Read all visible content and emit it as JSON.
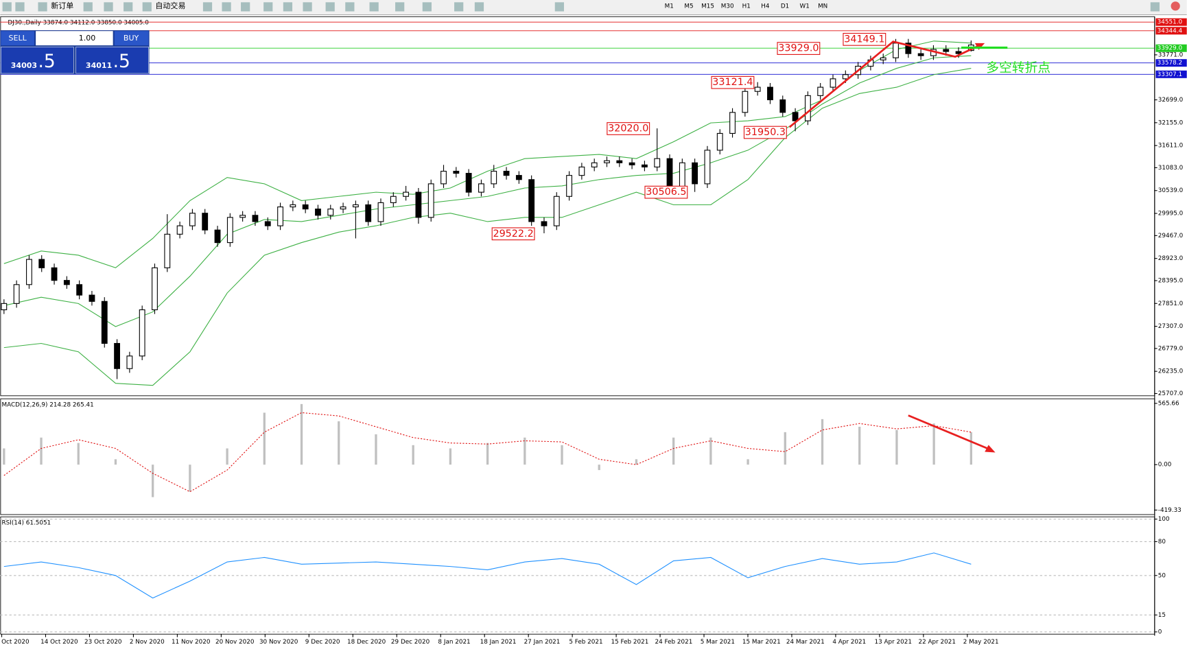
{
  "toolbar": {
    "new_order": "新订单",
    "auto_trading": "自动交易",
    "timeframes": [
      "M1",
      "M5",
      "M15",
      "M30",
      "H1",
      "H4",
      "D1",
      "W1",
      "MN"
    ]
  },
  "trade_panel": {
    "sell": "SELL",
    "buy": "BUY",
    "volume": "1.00",
    "sell_price_main": "34003",
    "sell_price_frac": ".5",
    "buy_price_main": "34011",
    "buy_price_frac": ".5"
  },
  "chart_data": [
    {
      "type": "candlestick",
      "title": "DJ30.,Daily 33874.0 34112.0 33850.0 34005.0",
      "date_labels": [
        "Oct 2020",
        "14 Oct 2020",
        "23 Oct 2020",
        "2 Nov 2020",
        "11 Nov 2020",
        "20 Nov 2020",
        "30 Nov 2020",
        "9 Dec 2020",
        "18 Dec 2020",
        "29 Dec 2020",
        "8 Jan 2021",
        "18 Jan 2021",
        "27 Jan 2021",
        "5 Feb 2021",
        "15 Feb 2021",
        "24 Feb 2021",
        "5 Mar 2021",
        "15 Mar 2021",
        "24 Mar 2021",
        "4 Apr 2021",
        "13 Apr 2021",
        "22 Apr 2021",
        "2 May 2021"
      ],
      "open": [
        27700,
        27850,
        28300,
        28900,
        28700,
        28400,
        28300,
        28050,
        27900,
        26900,
        26300,
        26600,
        27700,
        28700,
        29500,
        29700,
        30000,
        29600,
        29300,
        29900,
        29950,
        29800,
        29700,
        30150,
        30200,
        30100,
        29950,
        30100,
        30150,
        30200,
        29800,
        30250,
        30400,
        30500,
        29900,
        30700,
        31000,
        30950,
        30500,
        30700,
        31000,
        30900,
        30800,
        29800,
        29700,
        30400,
        30900,
        31100,
        31200,
        31250,
        31200,
        31150,
        31100,
        31300,
        30600,
        31200,
        30700,
        31500,
        31900,
        32400,
        32900,
        33000,
        32700,
        32400,
        32200,
        32800,
        33000,
        33200,
        33300,
        33500,
        33650,
        33700,
        34050,
        33800,
        33750,
        33900,
        33850,
        33874
      ],
      "high": [
        27950,
        28400,
        29000,
        29000,
        28800,
        28500,
        28400,
        28150,
        28000,
        27000,
        26700,
        27800,
        28800,
        29977,
        29800,
        30100,
        30100,
        29700,
        30000,
        30050,
        30050,
        29900,
        30250,
        30300,
        30300,
        30200,
        30200,
        30250,
        30300,
        30300,
        30350,
        30500,
        30650,
        30600,
        30800,
        31150,
        31100,
        31050,
        30800,
        31150,
        31100,
        31000,
        30900,
        29900,
        30500,
        31000,
        31200,
        31300,
        31350,
        31350,
        31300,
        31250,
        32020,
        31400,
        31300,
        31300,
        31600,
        32000,
        32500,
        33000,
        33121.4,
        33100,
        32800,
        32500,
        32900,
        33100,
        33300,
        33400,
        33600,
        33750,
        33800,
        34149.1,
        34150,
        33900,
        34000,
        34000,
        33950,
        34112
      ],
      "low": [
        27600,
        27750,
        28200,
        28600,
        28300,
        28200,
        27950,
        27800,
        26800,
        26050,
        26200,
        26500,
        27600,
        28600,
        29400,
        29600,
        29500,
        29200,
        29200,
        29800,
        29700,
        29600,
        29600,
        30050,
        30000,
        29850,
        29850,
        30000,
        29400,
        29700,
        29700,
        30150,
        30300,
        29750,
        29800,
        30600,
        30850,
        30400,
        30400,
        30600,
        30800,
        30700,
        29700,
        29522.2,
        29600,
        30300,
        30800,
        31000,
        31100,
        31100,
        31050,
        31000,
        31000,
        30500,
        30500,
        30506.5,
        30600,
        31400,
        31800,
        32300,
        32800,
        32600,
        32300,
        31950.3,
        32100,
        32700,
        32900,
        33100,
        33200,
        33400,
        33550,
        33600,
        33700,
        33650,
        33650,
        33750,
        33700,
        33850
      ],
      "close": [
        27850,
        28300,
        28900,
        28700,
        28400,
        28300,
        28050,
        27900,
        26900,
        26300,
        26600,
        27700,
        28700,
        29500,
        29700,
        30000,
        29600,
        29300,
        29900,
        29950,
        29800,
        29700,
        30150,
        30200,
        30100,
        29950,
        30100,
        30150,
        30200,
        29800,
        30250,
        30400,
        30500,
        29900,
        30700,
        31000,
        30950,
        30500,
        30700,
        31000,
        30900,
        30800,
        29800,
        29700,
        30400,
        30900,
        31100,
        31200,
        31250,
        31200,
        31150,
        31100,
        31300,
        30600,
        31200,
        30700,
        31500,
        31900,
        32400,
        32900,
        33000,
        32700,
        32400,
        32200,
        32800,
        33000,
        33200,
        33300,
        33500,
        33650,
        33700,
        34050,
        33800,
        33750,
        33900,
        33850,
        33800,
        34005
      ],
      "overlays": [
        {
          "color": "#3cb043",
          "values": [
            28800,
            29100,
            29000,
            28700,
            29400,
            30300,
            30850,
            30700,
            30300,
            30400,
            30500,
            30450,
            30600,
            31000,
            31300,
            31350,
            31400,
            31300,
            31700,
            32150,
            32200,
            32300,
            32700,
            33400,
            33900,
            34100,
            34050
          ]
        },
        {
          "color": "#3cb043",
          "values": [
            27800,
            28000,
            27850,
            27300,
            27650,
            28500,
            29500,
            29850,
            29800,
            29950,
            30100,
            30200,
            30300,
            30400,
            30600,
            30650,
            30800,
            30900,
            30950,
            31200,
            31500,
            32000,
            32600,
            33100,
            33450,
            33700,
            33750
          ]
        },
        {
          "color": "#3cb043",
          "values": [
            26800,
            26900,
            26700,
            25950,
            25900,
            26700,
            28100,
            29000,
            29300,
            29550,
            29700,
            29900,
            30000,
            29800,
            29900,
            29900,
            30200,
            30500,
            30200,
            30200,
            30800,
            31800,
            32500,
            32850,
            33000,
            33300,
            33450
          ]
        }
      ],
      "ylim": [
        25653,
        34680
      ],
      "yticks": [
        {
          "value": 33771,
          "label": "33771.0"
        },
        {
          "value": 32699,
          "label": "32699.0"
        },
        {
          "value": 32155,
          "label": "32155.0"
        },
        {
          "value": 31611,
          "label": "31611.0"
        },
        {
          "value": 31083,
          "label": "31083.0"
        },
        {
          "value": 30539,
          "label": "30539.0"
        },
        {
          "value": 29995,
          "label": "29995.0"
        },
        {
          "value": 29467,
          "label": "29467.0"
        },
        {
          "value": 28923,
          "label": "28923.0"
        },
        {
          "value": 28395,
          "label": "28395.0"
        },
        {
          "value": 27851,
          "label": "27851.0"
        },
        {
          "value": 27307,
          "label": "27307.0"
        },
        {
          "value": 26779,
          "label": "26779.0"
        },
        {
          "value": 26235,
          "label": "26235.0"
        },
        {
          "value": 25707,
          "label": "25707.0"
        }
      ],
      "levels": [
        {
          "value": 34551,
          "label": "34551.0",
          "color": "#e01010"
        },
        {
          "value": 34344.4,
          "label": "34344.4",
          "color": "#e01010"
        },
        {
          "value": 33929,
          "label": "33929.0",
          "color": "#22cc22"
        },
        {
          "value": 33578.2,
          "label": "33578.2",
          "color": "#1010d0"
        },
        {
          "value": 33307.1,
          "label": "33307.1",
          "color": "#1010d0"
        }
      ],
      "annotations": [
        "34149.1",
        "33929.0",
        "33121.4",
        "32020.0",
        "31950.3",
        "30506.5",
        "29522.2"
      ],
      "annotation_text": "多空转折点"
    },
    {
      "type": "macd",
      "title": "MACD(12,26,9) 214.28 265.41",
      "histogram": [
        150,
        250,
        200,
        50,
        -300,
        -250,
        150,
        480,
        560,
        400,
        280,
        180,
        150,
        200,
        250,
        180,
        -50,
        50,
        250,
        250,
        50,
        300,
        420,
        350,
        320,
        380,
        300
      ],
      "signal": [
        -100,
        150,
        230,
        150,
        -80,
        -250,
        -50,
        300,
        480,
        450,
        350,
        250,
        200,
        190,
        220,
        210,
        50,
        0,
        150,
        220,
        150,
        120,
        320,
        380,
        330,
        360,
        300
      ],
      "ylim": [
        -461,
        608
      ],
      "yticks": [
        565.66,
        {
          "value": 0,
          "label": "0.00"
        },
        -419.33
      ]
    },
    {
      "type": "rsi",
      "title": "RSI(14) 61.5051",
      "values": [
        58,
        62,
        57,
        50,
        30,
        45,
        62,
        66,
        60,
        61,
        62,
        60,
        58,
        55,
        62,
        65,
        60,
        42,
        63,
        66,
        48,
        58,
        65,
        60,
        62,
        70,
        60
      ],
      "color": "#1e90ff",
      "ylim": [
        -2,
        102
      ],
      "yticks": [
        100,
        80,
        50,
        15,
        0
      ]
    }
  ]
}
